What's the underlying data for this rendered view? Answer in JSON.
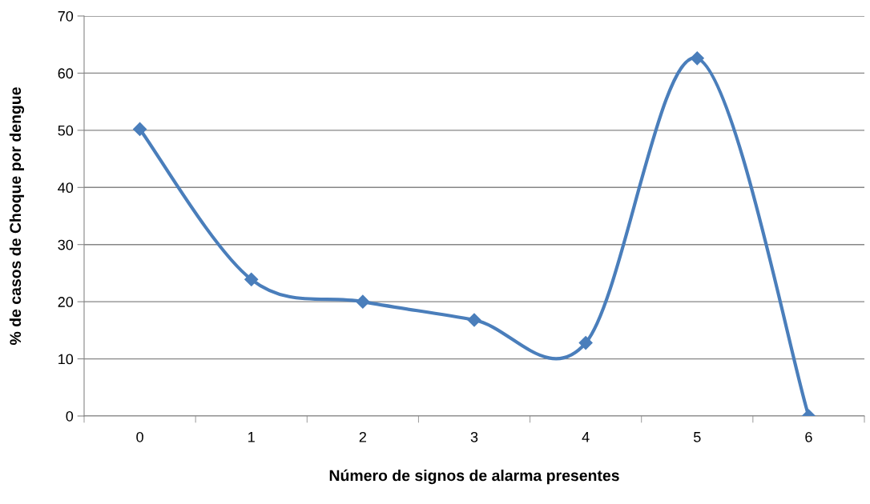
{
  "chart_data": {
    "type": "line",
    "xlabel": "Número de signos de alarma presentes",
    "ylabel": "% de casos de Choque por dengue",
    "categories": [
      "0",
      "1",
      "2",
      "3",
      "4",
      "5",
      "6"
    ],
    "series": [
      {
        "color": "#4a7ebb",
        "values": [
          50.2,
          23.9,
          20.0,
          16.8,
          12.8,
          62.6,
          0
        ]
      }
    ],
    "ylim": [
      0,
      70
    ],
    "yticks": [
      0,
      10,
      20,
      30,
      40,
      50,
      60,
      70
    ],
    "grid": "y",
    "marker": "diamond",
    "line_style": "solid"
  }
}
